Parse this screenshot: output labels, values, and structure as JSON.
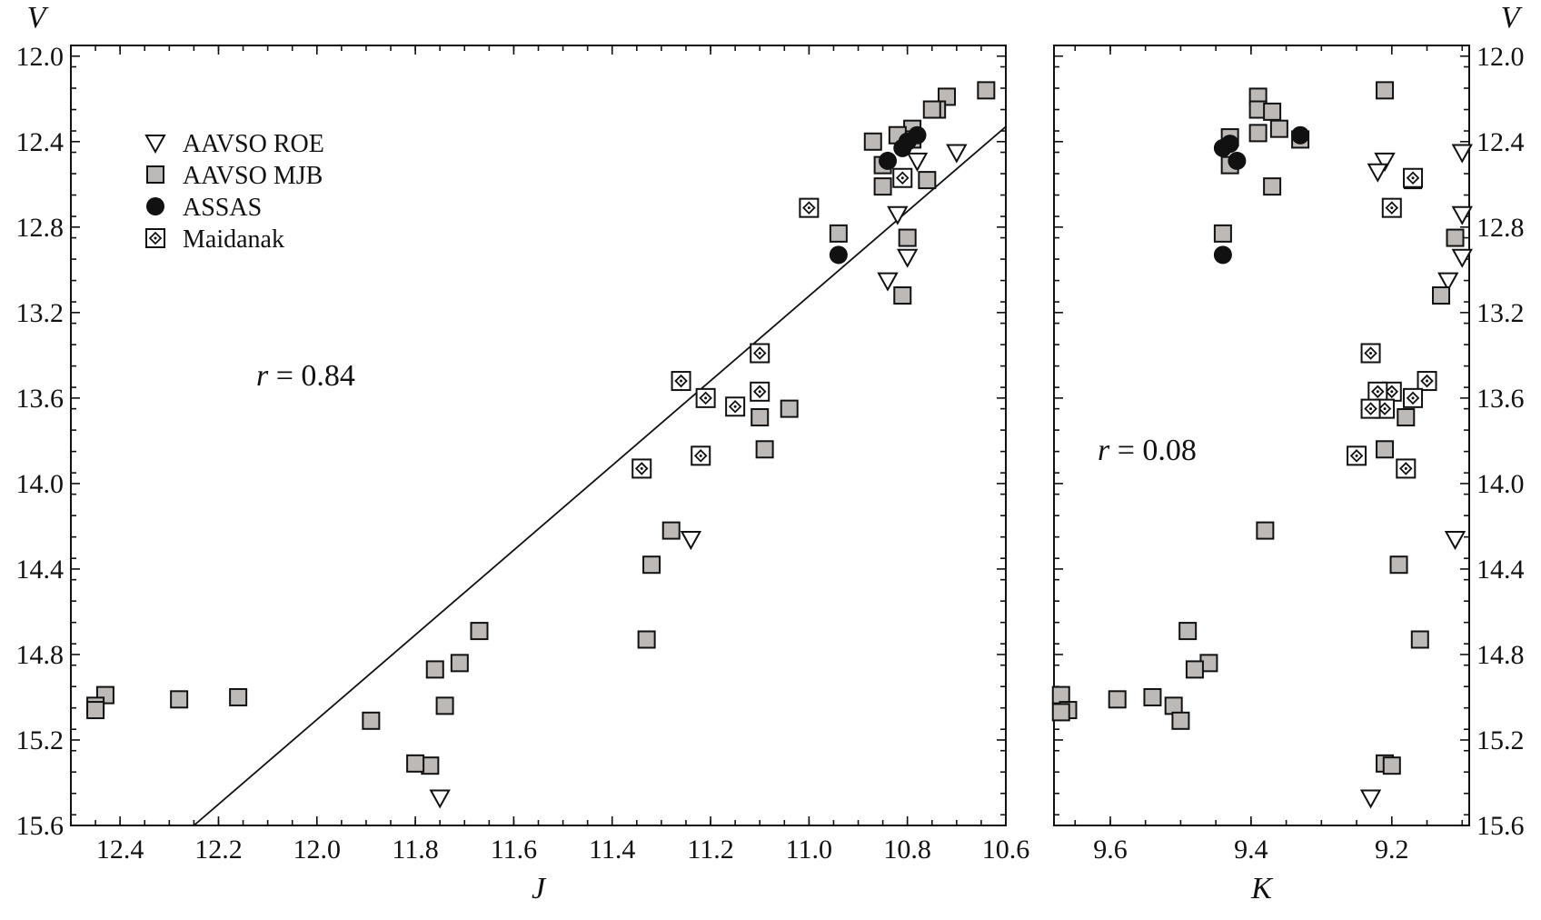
{
  "chart_data": [
    {
      "type": "scatter",
      "xlabel": "J",
      "ylabel": "V",
      "xlim": [
        12.5,
        10.6
      ],
      "ylim": [
        15.6,
        11.95
      ],
      "x_reversed": true,
      "y_reversed": true,
      "xticks": [
        "12.4",
        "12.2",
        "12.0",
        "11.8",
        "11.6",
        "11.4",
        "11.2",
        "11.0",
        "10.8",
        "10.6"
      ],
      "yticks": [
        "12.0",
        "12.4",
        "12.8",
        "13.2",
        "13.6",
        "14.0",
        "14.4",
        "14.8",
        "15.2",
        "15.6"
      ],
      "annotation": {
        "var": "r",
        "text": " = 0.84"
      },
      "fit_line": [
        [
          12.25,
          15.6
        ],
        [
          10.6,
          12.33
        ]
      ],
      "legend": {
        "position": "top-left",
        "entries": [
          "AAVSO ROE",
          "AAVSO MJB",
          "ASSAS",
          "Maidanak"
        ]
      },
      "series": [
        {
          "name": "AAVSO ROE",
          "marker": "triangle-down",
          "points": [
            [
              10.7,
              12.45
            ],
            [
              10.78,
              12.49
            ],
            [
              10.82,
              12.74
            ],
            [
              10.8,
              12.94
            ],
            [
              10.84,
              13.05
            ],
            [
              11.24,
              14.26
            ],
            [
              11.75,
              15.47
            ]
          ]
        },
        {
          "name": "AAVSO MJB",
          "marker": "square",
          "points": [
            [
              10.64,
              12.16
            ],
            [
              10.72,
              12.19
            ],
            [
              10.74,
              12.25
            ],
            [
              10.75,
              12.25
            ],
            [
              10.76,
              12.58
            ],
            [
              10.79,
              12.34
            ],
            [
              10.79,
              12.39
            ],
            [
              10.8,
              12.85
            ],
            [
              10.81,
              13.12
            ],
            [
              10.82,
              12.37
            ],
            [
              10.85,
              12.51
            ],
            [
              10.85,
              12.61
            ],
            [
              10.87,
              12.4
            ],
            [
              10.94,
              12.83
            ],
            [
              11.04,
              13.65
            ],
            [
              11.09,
              13.84
            ],
            [
              11.1,
              13.69
            ],
            [
              11.28,
              14.22
            ],
            [
              11.32,
              14.38
            ],
            [
              11.33,
              14.73
            ],
            [
              11.67,
              14.69
            ],
            [
              11.71,
              14.84
            ],
            [
              11.74,
              15.04
            ],
            [
              11.76,
              14.87
            ],
            [
              11.77,
              15.32
            ],
            [
              11.8,
              15.31
            ],
            [
              11.89,
              15.11
            ],
            [
              12.16,
              15.0
            ],
            [
              12.28,
              15.01
            ],
            [
              12.43,
              14.99
            ],
            [
              12.45,
              15.04
            ],
            [
              12.45,
              15.06
            ]
          ]
        },
        {
          "name": "ASSAS",
          "marker": "circle",
          "points": [
            [
              10.78,
              12.37
            ],
            [
              10.8,
              12.4
            ],
            [
              10.81,
              12.43
            ],
            [
              10.84,
              12.49
            ],
            [
              10.94,
              12.93
            ]
          ]
        },
        {
          "name": "Maidanak",
          "marker": "diamond-dot",
          "points": [
            [
              10.81,
              12.57
            ],
            [
              11.0,
              12.71
            ],
            [
              11.1,
              13.39
            ],
            [
              11.1,
              13.57
            ],
            [
              11.15,
              13.64
            ],
            [
              11.21,
              13.6
            ],
            [
              11.22,
              13.87
            ],
            [
              11.26,
              13.52
            ],
            [
              11.34,
              13.93
            ]
          ]
        }
      ]
    },
    {
      "type": "scatter",
      "xlabel": "K",
      "ylabel": "V",
      "xlim": [
        9.68,
        9.09
      ],
      "ylim": [
        15.6,
        11.95
      ],
      "x_reversed": true,
      "y_reversed": true,
      "xticks": [
        "9.6",
        "9.4",
        "9.2"
      ],
      "yticks": [
        "12.0",
        "12.4",
        "12.8",
        "13.2",
        "13.6",
        "14.0",
        "14.4",
        "14.8",
        "15.2",
        "15.6"
      ],
      "annotation": {
        "var": "r",
        "text": " = 0.08"
      },
      "series": [
        {
          "name": "AAVSO ROE",
          "marker": "triangle-down",
          "points": [
            [
              9.1,
              12.45
            ],
            [
              9.21,
              12.49
            ],
            [
              9.22,
              12.54
            ],
            [
              9.1,
              12.74
            ],
            [
              9.1,
              12.94
            ],
            [
              9.12,
              13.05
            ],
            [
              9.11,
              14.26
            ],
            [
              9.23,
              15.47
            ]
          ]
        },
        {
          "name": "AAVSO MJB",
          "marker": "square",
          "points": [
            [
              9.21,
              12.16
            ],
            [
              9.39,
              12.19
            ],
            [
              9.39,
              12.25
            ],
            [
              9.37,
              12.26
            ],
            [
              9.36,
              12.34
            ],
            [
              9.39,
              12.36
            ],
            [
              9.33,
              12.39
            ],
            [
              9.43,
              12.38
            ],
            [
              9.43,
              12.51
            ],
            [
              9.37,
              12.61
            ],
            [
              9.17,
              12.58
            ],
            [
              9.44,
              12.83
            ],
            [
              9.11,
              12.85
            ],
            [
              9.13,
              13.12
            ],
            [
              9.21,
              13.65
            ],
            [
              9.18,
              13.69
            ],
            [
              9.21,
              13.84
            ],
            [
              9.38,
              14.22
            ],
            [
              9.19,
              14.38
            ],
            [
              9.16,
              14.73
            ],
            [
              9.49,
              14.69
            ],
            [
              9.46,
              14.84
            ],
            [
              9.48,
              14.87
            ],
            [
              9.54,
              15.0
            ],
            [
              9.59,
              15.01
            ],
            [
              9.67,
              14.99
            ],
            [
              9.66,
              15.06
            ],
            [
              9.67,
              15.07
            ],
            [
              9.51,
              15.04
            ],
            [
              9.5,
              15.11
            ],
            [
              9.21,
              15.31
            ],
            [
              9.2,
              15.32
            ]
          ]
        },
        {
          "name": "ASSAS",
          "marker": "circle",
          "points": [
            [
              9.33,
              12.37
            ],
            [
              9.43,
              12.41
            ],
            [
              9.44,
              12.43
            ],
            [
              9.42,
              12.49
            ],
            [
              9.44,
              12.93
            ]
          ]
        },
        {
          "name": "Maidanak",
          "marker": "diamond-dot",
          "points": [
            [
              9.17,
              12.57
            ],
            [
              9.2,
              12.71
            ],
            [
              9.23,
              13.39
            ],
            [
              9.2,
              13.57
            ],
            [
              9.22,
              13.57
            ],
            [
              9.15,
              13.52
            ],
            [
              9.17,
              13.6
            ],
            [
              9.21,
              13.65
            ],
            [
              9.23,
              13.65
            ],
            [
              9.25,
              13.87
            ],
            [
              9.18,
              13.93
            ]
          ]
        }
      ]
    }
  ]
}
